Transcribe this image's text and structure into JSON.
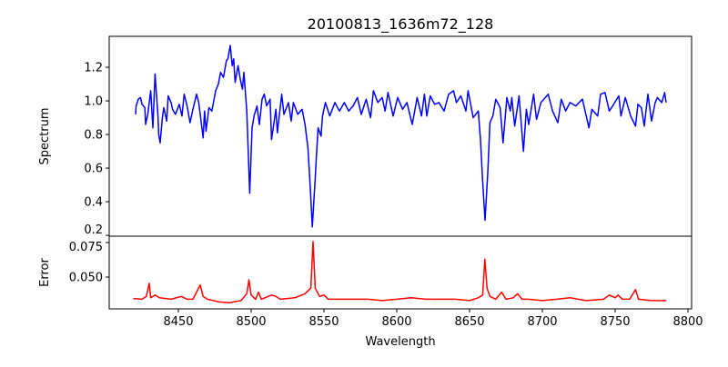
{
  "chart_data": [
    {
      "type": "line",
      "title": "20100813_1636m72_128",
      "xlabel": "",
      "ylabel": "Spectrum",
      "xlim": [
        8402.5,
        8802.5
      ],
      "ylim": [
        0.195,
        1.384
      ],
      "yticks": [
        0.2,
        0.4,
        0.6,
        0.8,
        1.0,
        1.2
      ],
      "ytick_labels": [
        "0.2",
        "0.4",
        "0.6",
        "0.8",
        "1.0",
        "1.2"
      ],
      "grid": false,
      "series": [
        {
          "name": "Spectrum",
          "color": "#0000ff",
          "points": [
            [
              8420.6,
              0.92
            ],
            [
              8421,
              0.97
            ],
            [
              8422.5,
              1.01
            ],
            [
              8424,
              1.02
            ],
            [
              8425,
              0.98
            ],
            [
              8427,
              0.96
            ],
            [
              8427.5,
              0.86
            ],
            [
              8429,
              0.92
            ],
            [
              8431,
              1.06
            ],
            [
              8432.5,
              0.84
            ],
            [
              8434,
              1.16
            ],
            [
              8436,
              0.91
            ],
            [
              8436.5,
              0.8
            ],
            [
              8437.5,
              0.75
            ],
            [
              8439,
              0.9
            ],
            [
              8440,
              0.96
            ],
            [
              8442,
              0.88
            ],
            [
              8443,
              1.03
            ],
            [
              8445,
              0.99
            ],
            [
              8446,
              0.95
            ],
            [
              8448,
              0.92
            ],
            [
              8450.6,
              0.98
            ],
            [
              8452.5,
              0.91
            ],
            [
              8454,
              1.04
            ],
            [
              8456,
              0.97
            ],
            [
              8458,
              0.87
            ],
            [
              8460,
              0.95
            ],
            [
              8462.5,
              1.04
            ],
            [
              8464,
              0.99
            ],
            [
              8467,
              0.78
            ],
            [
              8468,
              0.94
            ],
            [
              8469,
              0.82
            ],
            [
              8471,
              0.96
            ],
            [
              8473,
              0.94
            ],
            [
              8475.6,
              1.06
            ],
            [
              8477.5,
              1.1
            ],
            [
              8479,
              1.17
            ],
            [
              8481,
              1.14
            ],
            [
              8483,
              1.24
            ],
            [
              8484,
              1.25
            ],
            [
              8485.6,
              1.33
            ],
            [
              8487,
              1.21
            ],
            [
              8488,
              1.25
            ],
            [
              8489,
              1.11
            ],
            [
              8491,
              1.21
            ],
            [
              8492.5,
              1.13
            ],
            [
              8494,
              1.07
            ],
            [
              8495,
              1.17
            ],
            [
              8497,
              0.94
            ],
            [
              8499,
              0.45
            ],
            [
              8500.6,
              0.84
            ],
            [
              8502,
              0.91
            ],
            [
              8504,
              0.97
            ],
            [
              8505.6,
              0.86
            ],
            [
              8507.5,
              1.01
            ],
            [
              8509,
              1.04
            ],
            [
              8510.6,
              0.97
            ],
            [
              8513,
              1.01
            ],
            [
              8514,
              0.77
            ],
            [
              8517,
              0.95
            ],
            [
              8518,
              0.81
            ],
            [
              8521,
              1.04
            ],
            [
              8522.5,
              0.92
            ],
            [
              8525.6,
              0.99
            ],
            [
              8527.5,
              0.88
            ],
            [
              8529,
              0.99
            ],
            [
              8532,
              0.92
            ],
            [
              8535,
              0.95
            ],
            [
              8537,
              0.86
            ],
            [
              8539,
              0.72
            ],
            [
              8540.6,
              0.48
            ],
            [
              8542,
              0.25
            ],
            [
              8544,
              0.54
            ],
            [
              8545,
              0.7
            ],
            [
              8546,
              0.84
            ],
            [
              8548,
              0.79
            ],
            [
              8549,
              0.91
            ],
            [
              8551,
              0.99
            ],
            [
              8554,
              0.91
            ],
            [
              8557.5,
              0.99
            ],
            [
              8560.6,
              0.94
            ],
            [
              8564,
              0.99
            ],
            [
              8567,
              0.94
            ],
            [
              8570,
              0.97
            ],
            [
              8573,
              1.02
            ],
            [
              8575.6,
              0.92
            ],
            [
              8579,
              1.01
            ],
            [
              8582,
              0.9
            ],
            [
              8584,
              1.06
            ],
            [
              8587,
              0.99
            ],
            [
              8590,
              1.02
            ],
            [
              8592,
              0.94
            ],
            [
              8594,
              1.05
            ],
            [
              8597.5,
              0.91
            ],
            [
              8600.6,
              1.02
            ],
            [
              8604,
              0.95
            ],
            [
              8607,
              0.99
            ],
            [
              8610.6,
              0.86
            ],
            [
              8614,
              1.02
            ],
            [
              8617,
              0.91
            ],
            [
              8619,
              1.04
            ],
            [
              8620.6,
              0.91
            ],
            [
              8623,
              1.03
            ],
            [
              8626,
              0.98
            ],
            [
              8629,
              0.99
            ],
            [
              8632.5,
              0.94
            ],
            [
              8635.6,
              1.04
            ],
            [
              8639,
              1.06
            ],
            [
              8641,
              0.99
            ],
            [
              8644,
              1.03
            ],
            [
              8647.5,
              0.94
            ],
            [
              8649,
              1.06
            ],
            [
              8652.5,
              0.9
            ],
            [
              8656,
              0.94
            ],
            [
              8657.5,
              0.77
            ],
            [
              8659,
              0.52
            ],
            [
              8660.6,
              0.29
            ],
            [
              8662.5,
              0.57
            ],
            [
              8664,
              0.87
            ],
            [
              8666,
              0.91
            ],
            [
              8668,
              1.01
            ],
            [
              8671,
              0.96
            ],
            [
              8673,
              0.75
            ],
            [
              8675.6,
              1.02
            ],
            [
              8678,
              0.94
            ],
            [
              8679,
              1.02
            ],
            [
              8681,
              0.85
            ],
            [
              8684,
              1.03
            ],
            [
              8685,
              0.92
            ],
            [
              8687,
              0.7
            ],
            [
              8689,
              0.95
            ],
            [
              8690.6,
              0.86
            ],
            [
              8694,
              1.04
            ],
            [
              8696,
              0.89
            ],
            [
              8699,
              0.99
            ],
            [
              8704,
              1.04
            ],
            [
              8707,
              0.94
            ],
            [
              8710.6,
              0.87
            ],
            [
              8713,
              1.01
            ],
            [
              8716,
              0.94
            ],
            [
              8719,
              0.99
            ],
            [
              8723,
              0.97
            ],
            [
              8727.5,
              1.01
            ],
            [
              8732,
              0.84
            ],
            [
              8734,
              0.95
            ],
            [
              8738,
              0.91
            ],
            [
              8740,
              1.04
            ],
            [
              8743,
              1.05
            ],
            [
              8746,
              0.94
            ],
            [
              8749,
              0.98
            ],
            [
              8752.5,
              1.03
            ],
            [
              8754,
              0.91
            ],
            [
              8757,
              1.02
            ],
            [
              8760.6,
              0.91
            ],
            [
              8764,
              0.85
            ],
            [
              8765.6,
              0.98
            ],
            [
              8768,
              0.96
            ],
            [
              8770,
              0.85
            ],
            [
              8772.5,
              1.04
            ],
            [
              8775,
              0.88
            ],
            [
              8777.5,
              0.99
            ],
            [
              8779,
              1.02
            ],
            [
              8782,
              0.99
            ],
            [
              8784,
              1.05
            ],
            [
              8785,
              0.99
            ]
          ]
        }
      ]
    },
    {
      "type": "line",
      "xlabel": "Wavelength",
      "ylabel": "Error",
      "xlim": [
        8402.5,
        8802.5
      ],
      "ylim": [
        0.027,
        0.0796
      ],
      "xticks": [
        8450,
        8500,
        8550,
        8600,
        8650,
        8700,
        8750,
        8800
      ],
      "xtick_labels": [
        "8450",
        "8500",
        "8550",
        "8600",
        "8650",
        "8700",
        "8750",
        "8800"
      ],
      "yticks": [
        0.05,
        0.075
      ],
      "ytick_labels": [
        "0.050",
        "0.075"
      ],
      "grid": false,
      "series": [
        {
          "name": "Error",
          "color": "#ff0000",
          "points": [
            [
              8419,
              0.0345
            ],
            [
              8425,
              0.034
            ],
            [
              8428,
              0.036
            ],
            [
              8430,
              0.0455
            ],
            [
              8431,
              0.035
            ],
            [
              8434,
              0.037
            ],
            [
              8437,
              0.035
            ],
            [
              8445,
              0.034
            ],
            [
              8452,
              0.036
            ],
            [
              8456,
              0.034
            ],
            [
              8460,
              0.034
            ],
            [
              8465,
              0.0443
            ],
            [
              8467,
              0.036
            ],
            [
              8470,
              0.034
            ],
            [
              8478,
              0.032
            ],
            [
              8485,
              0.0315
            ],
            [
              8493,
              0.033
            ],
            [
              8497,
              0.038
            ],
            [
              8498.5,
              0.048
            ],
            [
              8500,
              0.037
            ],
            [
              8503,
              0.034
            ],
            [
              8505,
              0.039
            ],
            [
              8507,
              0.034
            ],
            [
              8514,
              0.037
            ],
            [
              8517,
              0.036
            ],
            [
              8520,
              0.034
            ],
            [
              8530,
              0.035
            ],
            [
              8537,
              0.038
            ],
            [
              8541,
              0.042
            ],
            [
              8542.5,
              0.0757
            ],
            [
              8544,
              0.042
            ],
            [
              8547,
              0.036
            ],
            [
              8550,
              0.037
            ],
            [
              8553,
              0.034
            ],
            [
              8570,
              0.034
            ],
            [
              8580,
              0.034
            ],
            [
              8590,
              0.033
            ],
            [
              8600,
              0.034
            ],
            [
              8610,
              0.035
            ],
            [
              8620,
              0.034
            ],
            [
              8630,
              0.034
            ],
            [
              8640,
              0.034
            ],
            [
              8650,
              0.033
            ],
            [
              8656,
              0.035
            ],
            [
              8659,
              0.037
            ],
            [
              8660.5,
              0.063
            ],
            [
              8662,
              0.042
            ],
            [
              8664,
              0.036
            ],
            [
              8668,
              0.034
            ],
            [
              8672,
              0.039
            ],
            [
              8675,
              0.034
            ],
            [
              8680,
              0.035
            ],
            [
              8683,
              0.038
            ],
            [
              8686,
              0.034
            ],
            [
              8690,
              0.034
            ],
            [
              8700,
              0.033
            ],
            [
              8710,
              0.034
            ],
            [
              8719,
              0.035
            ],
            [
              8730,
              0.033
            ],
            [
              8742,
              0.034
            ],
            [
              8746,
              0.037
            ],
            [
              8750,
              0.035
            ],
            [
              8752,
              0.037
            ],
            [
              8755,
              0.034
            ],
            [
              8760,
              0.034
            ],
            [
              8764,
              0.041
            ],
            [
              8766,
              0.034
            ],
            [
              8775,
              0.033
            ],
            [
              8785,
              0.033
            ]
          ]
        }
      ]
    }
  ]
}
